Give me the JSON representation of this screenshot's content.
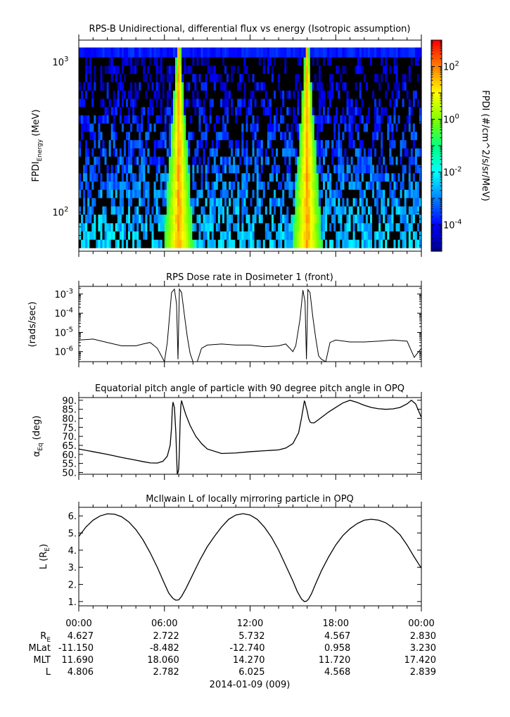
{
  "chart_data": [
    {
      "type": "heatmap",
      "title": "RPS-B  Unidirectional, differential flux vs energy (Isotropic assumption)",
      "ylabel": "FPDI",
      "ylabel_sub": "Energy",
      "ylabel_unit": " (MeV)",
      "yscale": "log",
      "ylim": [
        55,
        1400
      ],
      "yticks": [
        {
          "base": "10",
          "exp": "3",
          "value": 1000
        },
        {
          "base": "10",
          "exp": "2",
          "value": 100
        }
      ],
      "energy_bins_mev": [
        58,
        66,
        75,
        85,
        97,
        110,
        125,
        142,
        161,
        183,
        208,
        236,
        268,
        304,
        345,
        392,
        445,
        505,
        573,
        650,
        738,
        838,
        951,
        1080,
        1250
      ],
      "x_hours": [
        0,
        24
      ],
      "colorbar": {
        "label": "FPDI (#/cm^2/s/sr/MeV)",
        "log_range": [
          -5,
          3
        ],
        "ticks": [
          {
            "base": "10",
            "exp": "2",
            "log": 2
          },
          {
            "base": "10",
            "exp": "0",
            "log": 0
          },
          {
            "base": "10",
            "exp": "-2",
            "log": -2
          },
          {
            "base": "10",
            "exp": "-4",
            "log": -4
          }
        ],
        "colors": [
          "#00007f",
          "#0000ff",
          "#0080ff",
          "#00ffff",
          "#00ff80",
          "#80ff00",
          "#ffff00",
          "#ff8000",
          "#ff0000"
        ]
      },
      "perigee_crossings_hours": [
        7.0,
        16.0
      ]
    },
    {
      "type": "line",
      "title": "RPS  Dose rate in Dosimeter 1 (front)",
      "ylabel": "(rads/sec)",
      "yscale": "log",
      "ylim": [
        3e-07,
        0.0025
      ],
      "yticks": [
        {
          "base": "10",
          "exp": "-3",
          "value": 0.001
        },
        {
          "base": "10",
          "exp": "-4",
          "value": 0.0001
        },
        {
          "base": "10",
          "exp": "-5",
          "value": 1e-05
        },
        {
          "base": "10",
          "exp": "-6",
          "value": 1e-06
        }
      ],
      "x": [
        0,
        1,
        2,
        3,
        4,
        4.5,
        5,
        5.5,
        6,
        6.2,
        6.5,
        6.7,
        6.85,
        6.95,
        7.05,
        7.2,
        7.4,
        7.6,
        7.8,
        8.0,
        8.3,
        8.6,
        9,
        10,
        11,
        12,
        13,
        14,
        14.5,
        15,
        15.2,
        15.5,
        15.7,
        15.85,
        15.95,
        16.05,
        16.2,
        16.4,
        16.6,
        16.8,
        17.0,
        17.3,
        17.6,
        18,
        19,
        20,
        21,
        22,
        23,
        23.5,
        24
      ],
      "values": [
        4e-06,
        4.5e-06,
        3e-06,
        2e-06,
        2e-06,
        2.5e-06,
        3e-06,
        1.5e-06,
        3e-07,
        3e-06,
        0.0012,
        0.0018,
        0.0003,
        4e-07,
        0.0018,
        0.0012,
        8e-05,
        6e-06,
        8e-07,
        3e-07,
        3e-07,
        1.5e-06,
        2.2e-06,
        2.5e-06,
        2.2e-06,
        2.2e-06,
        1.8e-06,
        2e-06,
        2.5e-06,
        1e-06,
        2e-06,
        5e-05,
        0.0016,
        0.0004,
        4e-07,
        0.0017,
        0.0012,
        6e-05,
        5e-06,
        6e-07,
        4e-07,
        3e-07,
        3e-06,
        4e-06,
        3.2e-06,
        3.2e-06,
        3.5e-06,
        4e-06,
        3.5e-06,
        5e-07,
        1.5e-06
      ]
    },
    {
      "type": "line",
      "title": "Equatorial pitch angle of particle with 90 degree pitch angle in OPQ",
      "ylabel": "Eq",
      "ylabel_prefix": "α",
      "ylabel_unit": " (deg)",
      "ylim": [
        49,
        91.5
      ],
      "yticks": [
        "90.",
        "85.",
        "80.",
        "75.",
        "70.",
        "65.",
        "60.",
        "55.",
        "50."
      ],
      "x": [
        0,
        1,
        2,
        3,
        4,
        4.5,
        5,
        5.5,
        5.9,
        6.2,
        6.4,
        6.5,
        6.55,
        6.6,
        6.7,
        6.8,
        6.85,
        6.9,
        6.95,
        7.0,
        7.05,
        7.1,
        7.15,
        7.2,
        7.3,
        7.5,
        7.8,
        8.2,
        8.6,
        9,
        10,
        11,
        12,
        13,
        14,
        14.5,
        15,
        15.4,
        15.6,
        15.75,
        15.8,
        15.85,
        15.9,
        16.0,
        16.1,
        16.2,
        16.3,
        16.5,
        17,
        17.5,
        18,
        18.5,
        19,
        19.5,
        20,
        20.5,
        21,
        21.5,
        22,
        22.5,
        23,
        23.3,
        23.6,
        24
      ],
      "values": [
        63,
        61.5,
        60,
        58.3,
        56.8,
        56,
        55.3,
        55.2,
        56.2,
        59,
        65,
        75,
        85,
        89,
        86,
        72,
        60,
        49,
        50,
        52,
        63,
        78,
        87,
        89.8,
        87,
        82,
        76,
        70,
        66,
        63,
        60.5,
        60.8,
        61.5,
        62,
        62.5,
        63.5,
        66,
        72,
        80,
        87,
        89.5,
        89,
        87,
        84,
        80,
        78,
        77.5,
        77.5,
        80.5,
        83.5,
        86,
        88.5,
        90,
        88.8,
        87.2,
        86,
        85.3,
        85,
        85.2,
        86,
        88,
        90,
        88,
        80.5
      ]
    },
    {
      "type": "line",
      "title": "McIlwain L of locally mirroring particle in OPQ",
      "ylabel": "L (R",
      "ylabel_sub": "E",
      "ylabel_close": ")",
      "ylim": [
        0.75,
        6.5
      ],
      "yticks": [
        "6.",
        "5.",
        "4.",
        "3.",
        "2.",
        "1."
      ],
      "x": [
        0,
        0.5,
        1,
        1.5,
        2,
        2.5,
        3,
        3.5,
        4,
        4.5,
        5,
        5.5,
        6,
        6.3,
        6.6,
        6.8,
        7.0,
        7.2,
        7.5,
        8,
        8.5,
        9,
        9.5,
        10,
        10.5,
        11,
        11.5,
        12,
        12.5,
        13,
        13.5,
        14,
        14.5,
        15,
        15.3,
        15.6,
        15.8,
        15.95,
        16.1,
        16.3,
        16.6,
        17,
        17.5,
        18,
        18.5,
        19,
        19.5,
        20,
        20.5,
        21,
        21.5,
        22,
        22.5,
        23,
        23.5,
        24
      ],
      "values": [
        4.8,
        5.35,
        5.75,
        6.0,
        6.12,
        6.1,
        5.95,
        5.65,
        5.2,
        4.6,
        3.85,
        3.0,
        2.05,
        1.5,
        1.18,
        1.08,
        1.1,
        1.3,
        1.75,
        2.6,
        3.45,
        4.2,
        4.8,
        5.35,
        5.8,
        6.05,
        6.13,
        6.05,
        5.8,
        5.35,
        4.75,
        4.0,
        3.1,
        2.2,
        1.6,
        1.15,
        1.0,
        1.02,
        1.15,
        1.45,
        2.05,
        2.8,
        3.6,
        4.3,
        4.85,
        5.25,
        5.55,
        5.75,
        5.8,
        5.75,
        5.6,
        5.3,
        4.9,
        4.3,
        3.6,
        2.95
      ]
    }
  ],
  "x_axis": {
    "ticks": [
      "00:00",
      "06:00",
      "12:00",
      "18:00",
      "00:00"
    ],
    "tick_hours": [
      0,
      6,
      12,
      18,
      24
    ],
    "minor_step_hours": 1,
    "date_label": "2014-01-09 (009)"
  },
  "ephemeris": {
    "rows": [
      {
        "label": "R",
        "sub": "E",
        "values": [
          "4.627",
          "2.722",
          "5.732",
          "4.567",
          "2.830"
        ]
      },
      {
        "label": "MLat",
        "sub": "",
        "values": [
          "-11.150",
          "-8.482",
          "-12.740",
          "0.958",
          "3.230"
        ]
      },
      {
        "label": "MLT",
        "sub": "",
        "values": [
          "11.690",
          "18.060",
          "14.270",
          "11.720",
          "17.420"
        ]
      },
      {
        "label": "L",
        "sub": "",
        "values": [
          "4.806",
          "2.782",
          "6.025",
          "4.568",
          "2.839"
        ]
      }
    ]
  }
}
